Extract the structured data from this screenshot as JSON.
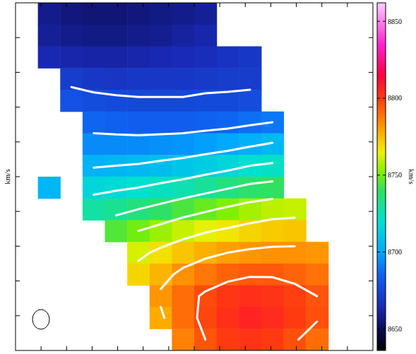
{
  "chart_data": {
    "type": "heatmap",
    "ylabel": "km/s",
    "colorbar_label": "km/s",
    "tick_labels": false,
    "cells": [
      [
        null,
        8658,
        8656,
        8655,
        8655,
        8656,
        8657,
        8658,
        8660,
        null,
        null,
        null,
        null,
        null,
        null,
        null
      ],
      [
        null,
        8660,
        8658,
        8657,
        8657,
        8658,
        8659,
        8661,
        8663,
        null,
        null,
        null,
        null,
        null,
        null,
        null
      ],
      [
        null,
        8664,
        8663,
        8662,
        8662,
        8663,
        8664,
        8665,
        8666,
        8668,
        8670,
        null,
        null,
        null,
        null,
        null
      ],
      [
        null,
        null,
        8672,
        8670,
        8669,
        8670,
        8670,
        8670,
        8671,
        8672,
        8672,
        null,
        null,
        null,
        null,
        null
      ],
      [
        null,
        null,
        8680,
        8678,
        8677,
        8676,
        8676,
        8676,
        8677,
        8677,
        8678,
        null,
        null,
        null,
        null,
        null
      ],
      [
        null,
        null,
        null,
        8686,
        8685,
        8684,
        8684,
        8684,
        8685,
        8686,
        8688,
        8690,
        null,
        null,
        null,
        null
      ],
      [
        null,
        null,
        null,
        8694,
        8694,
        8694,
        8695,
        8696,
        8698,
        8700,
        8703,
        8706,
        null,
        null,
        null,
        null
      ],
      [
        null,
        null,
        null,
        8704,
        8705,
        8706,
        8708,
        8710,
        8713,
        8716,
        8720,
        8722,
        null,
        null,
        null,
        null
      ],
      [
        null,
        8705,
        null,
        8716,
        8718,
        8720,
        8723,
        8726,
        8730,
        8734,
        8738,
        8740,
        null,
        null,
        null,
        null
      ],
      [
        null,
        null,
        null,
        8728,
        8731,
        8735,
        8739,
        8744,
        8748,
        8752,
        8756,
        8759,
        8760,
        null,
        null,
        null
      ],
      [
        null,
        null,
        null,
        null,
        8745,
        8750,
        8755,
        8760,
        8764,
        8767,
        8770,
        8772,
        8773,
        null,
        null,
        null
      ],
      [
        null,
        null,
        null,
        null,
        null,
        8762,
        8768,
        8773,
        8777,
        8780,
        8782,
        8783,
        8783,
        8782,
        null,
        null
      ],
      [
        null,
        null,
        null,
        null,
        null,
        8770,
        8776,
        8783,
        8788,
        8792,
        8794,
        8794,
        8792,
        8789,
        null,
        null
      ],
      [
        null,
        null,
        null,
        null,
        null,
        null,
        8782,
        8790,
        8797,
        8801,
        8803,
        8802,
        8799,
        8795,
        null,
        null
      ],
      [
        null,
        null,
        null,
        null,
        null,
        null,
        8778,
        8790,
        8798,
        8803,
        8806,
        8804,
        8800,
        8796,
        null,
        null
      ],
      [
        null,
        null,
        null,
        null,
        null,
        null,
        null,
        8786,
        8795,
        8800,
        8802,
        8800,
        8796,
        8790,
        null,
        null
      ]
    ],
    "contours": [
      8675,
      8690,
      8705,
      8720,
      8735,
      8750,
      8765,
      8780,
      8795
    ],
    "colorbar_range": [
      8636,
      8862
    ],
    "colorbar_ticks": [
      8650,
      8700,
      8750,
      8800,
      8850
    ]
  }
}
